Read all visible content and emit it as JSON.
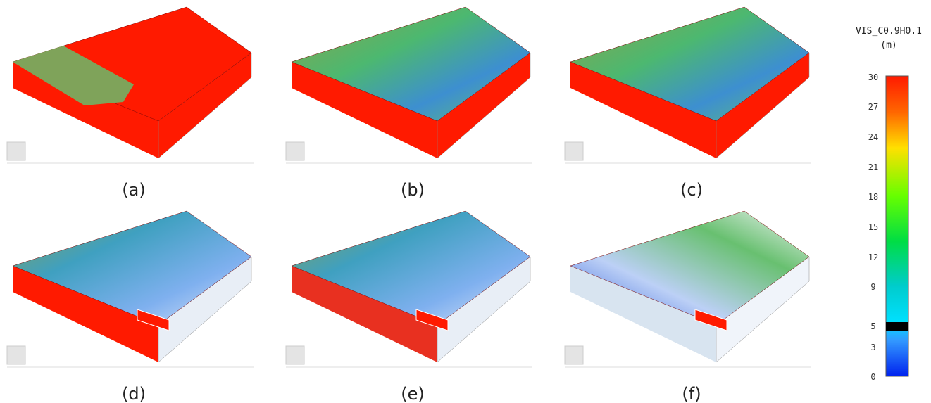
{
  "panels": [
    {
      "label": "(a)"
    },
    {
      "label": "(b)"
    },
    {
      "label": "(c)"
    },
    {
      "label": "(d)"
    },
    {
      "label": "(e)"
    },
    {
      "label": "(f)"
    }
  ],
  "colorbar": {
    "title": "VIS_C0.9H0.1",
    "unit": "(m)",
    "ticks": [
      30,
      27,
      24,
      21,
      18,
      15,
      12,
      9,
      5,
      3,
      0
    ]
  }
}
